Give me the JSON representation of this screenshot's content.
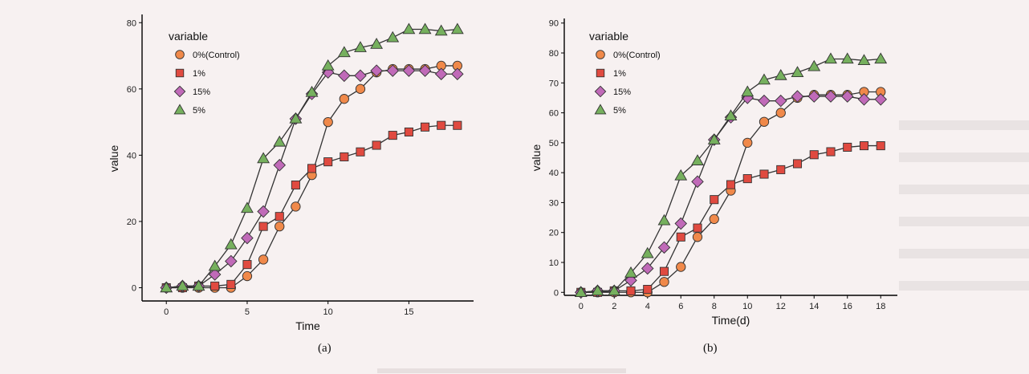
{
  "chart_data": [
    {
      "type": "scatter",
      "xlabel": "Time",
      "ylabel": "value",
      "xlim": [
        -1.5,
        19
      ],
      "ylim": [
        -4,
        82
      ],
      "xticks": [
        0,
        5,
        10,
        15
      ],
      "yticks": [
        0,
        20,
        40,
        60,
        80
      ],
      "legend_title": "variable",
      "legend_position": "top-left",
      "grid": false,
      "caption": "(a)",
      "x": [
        0,
        1,
        2,
        3,
        4,
        5,
        6,
        7,
        8,
        9,
        10,
        11,
        12,
        13,
        14,
        15,
        16,
        17,
        18
      ],
      "series": [
        {
          "name": "0%(Control)",
          "marker": "circle",
          "color": "#f0894a",
          "values": [
            0,
            0,
            0,
            0,
            0,
            3.5,
            8.5,
            18.5,
            24.5,
            34,
            50,
            57,
            60,
            65,
            66,
            66,
            66,
            67,
            67
          ]
        },
        {
          "name": "1%",
          "marker": "square",
          "color": "#e04a40",
          "values": [
            0,
            0,
            0.5,
            0.5,
            1,
            7,
            18.5,
            21.5,
            31,
            36,
            38,
            39.5,
            41,
            43,
            46,
            47,
            48.5,
            49,
            49
          ]
        },
        {
          "name": "15%",
          "marker": "diamond",
          "color": "#c06ab8",
          "values": [
            0,
            0.5,
            0.5,
            4,
            8,
            15,
            23,
            37,
            51,
            58.5,
            65,
            64,
            64,
            65.5,
            65.5,
            65.5,
            65.5,
            64.5,
            64.5
          ]
        },
        {
          "name": "5%",
          "marker": "triangle",
          "color": "#76b05e",
          "values": [
            0,
            0.5,
            0.5,
            6.5,
            13,
            24,
            39,
            44,
            51,
            59,
            67,
            71,
            72.5,
            73.5,
            75.5,
            78,
            78,
            77.5,
            78
          ]
        }
      ]
    },
    {
      "type": "scatter",
      "xlabel": "Time(d)",
      "ylabel": "value",
      "xlim": [
        -1,
        19
      ],
      "ylim": [
        -1,
        91
      ],
      "xticks": [
        0,
        2,
        4,
        6,
        8,
        10,
        12,
        14,
        16,
        18
      ],
      "yticks": [
        0,
        10,
        20,
        30,
        40,
        50,
        60,
        70,
        80,
        90
      ],
      "legend_title": "variable",
      "legend_position": "top-left",
      "grid": false,
      "caption": "(b)",
      "x": [
        0,
        1,
        2,
        3,
        4,
        5,
        6,
        7,
        8,
        9,
        10,
        11,
        12,
        13,
        14,
        15,
        16,
        17,
        18
      ],
      "series": [
        {
          "name": "0%(Control)",
          "marker": "circle",
          "color": "#f0894a",
          "values": [
            0,
            0,
            0,
            0,
            0,
            3.5,
            8.5,
            18.5,
            24.5,
            34,
            50,
            57,
            60,
            65,
            66,
            66,
            66,
            67,
            67
          ]
        },
        {
          "name": "1%",
          "marker": "square",
          "color": "#e04a40",
          "values": [
            0,
            0,
            0.5,
            0.5,
            1,
            7,
            18.5,
            21.5,
            31,
            36,
            38,
            39.5,
            41,
            43,
            46,
            47,
            48.5,
            49,
            49
          ]
        },
        {
          "name": "15%",
          "marker": "diamond",
          "color": "#c06ab8",
          "values": [
            0,
            0.5,
            0.5,
            4,
            8,
            15,
            23,
            37,
            51,
            58.5,
            65,
            64,
            64,
            65.5,
            65.5,
            65.5,
            65.5,
            64.5,
            64.5
          ]
        },
        {
          "name": "5%",
          "marker": "triangle",
          "color": "#76b05e",
          "values": [
            0,
            0.5,
            0.5,
            6.5,
            13,
            24,
            39,
            44,
            51,
            59,
            67,
            71,
            72.5,
            73.5,
            75.5,
            78,
            78,
            77.5,
            78
          ]
        }
      ]
    }
  ]
}
